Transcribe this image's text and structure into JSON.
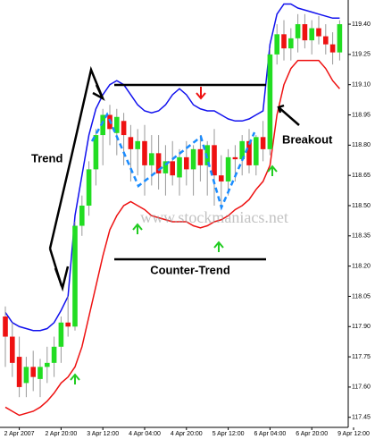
{
  "chart_data": {
    "type": "candlestick",
    "annotations": {
      "trend": "Trend",
      "counter_trend": "Counter-Trend",
      "breakout": "Breakout",
      "watermark": "www.stockmaniacs.net"
    },
    "categories": [
      null,
      null,
      "2 Apr 2007",
      null,
      null,
      null,
      null,
      null,
      "2 Apr 20:00",
      null,
      null,
      null,
      null,
      null,
      "3 Apr 12:00",
      null,
      null,
      null,
      null,
      null,
      "4 Apr 04:00",
      null,
      null,
      null,
      null,
      null,
      "4 Apr 20:00",
      null,
      null,
      null,
      null,
      null,
      "5 Apr 12:00",
      null,
      null,
      null,
      null,
      null,
      "6 Apr 04:00",
      null,
      null,
      null,
      null,
      null,
      "6 Apr 20:00",
      null,
      null,
      null,
      null,
      null,
      "9 Apr 12:00"
    ],
    "open": [
      117.95,
      117.85,
      117.75,
      117.62,
      117.7,
      117.64,
      117.7,
      117.72,
      117.8,
      117.92,
      117.9,
      118.4,
      118.5,
      118.68,
      118.85,
      118.95,
      118.86,
      118.92,
      118.84,
      118.78,
      118.82,
      118.7,
      118.76,
      118.66,
      118.72,
      118.64,
      118.74,
      118.68,
      118.78,
      118.7,
      118.8,
      118.65,
      118.62,
      118.74,
      118.73,
      118.82,
      118.7,
      118.84,
      118.78,
      119.25,
      119.35,
      119.28,
      119.33,
      119.4,
      119.32,
      119.38,
      119.34,
      119.3,
      119.26,
      null,
      null
    ],
    "high": [
      118.0,
      117.92,
      117.85,
      117.75,
      117.78,
      117.74,
      117.8,
      117.85,
      117.95,
      118.05,
      118.42,
      118.55,
      118.72,
      118.88,
      118.98,
      119.0,
      118.98,
      118.96,
      118.9,
      118.88,
      118.9,
      118.85,
      118.85,
      118.8,
      118.82,
      118.78,
      118.82,
      118.8,
      118.85,
      118.82,
      118.88,
      118.75,
      118.78,
      118.8,
      118.85,
      118.88,
      118.85,
      118.92,
      119.28,
      119.4,
      119.42,
      119.38,
      119.45,
      119.45,
      119.42,
      119.44,
      119.4,
      119.36,
      119.42,
      null,
      null
    ],
    "low": [
      117.7,
      117.65,
      117.55,
      117.55,
      117.58,
      117.55,
      117.62,
      117.65,
      117.72,
      117.85,
      117.88,
      118.35,
      118.45,
      118.6,
      118.7,
      118.8,
      118.75,
      118.7,
      118.62,
      118.65,
      118.55,
      118.6,
      118.58,
      118.55,
      118.6,
      118.55,
      118.6,
      118.55,
      118.62,
      118.55,
      118.5,
      118.5,
      118.55,
      118.62,
      118.65,
      118.66,
      118.65,
      118.72,
      118.75,
      119.2,
      119.22,
      119.22,
      119.26,
      119.28,
      119.25,
      119.3,
      119.25,
      119.2,
      119.22,
      null,
      null
    ],
    "close": [
      117.85,
      117.72,
      117.6,
      117.7,
      117.65,
      117.7,
      117.72,
      117.8,
      117.92,
      117.9,
      118.4,
      118.5,
      118.68,
      118.85,
      118.95,
      118.88,
      118.94,
      118.85,
      118.78,
      118.82,
      118.7,
      118.76,
      118.66,
      118.72,
      118.65,
      118.74,
      118.68,
      118.78,
      118.7,
      118.8,
      118.65,
      118.62,
      118.74,
      118.73,
      118.82,
      118.7,
      118.84,
      118.78,
      119.25,
      119.35,
      119.28,
      119.33,
      119.4,
      119.32,
      119.38,
      119.34,
      119.3,
      119.26,
      119.4,
      null,
      null
    ],
    "up_color": "#22dd22",
    "down_color": "#ee1111",
    "bands": [
      {
        "color": "#1111ee",
        "values": [
          117.97,
          117.92,
          117.9,
          117.89,
          117.88,
          117.88,
          117.89,
          117.92,
          117.98,
          118.05,
          118.45,
          118.65,
          118.85,
          118.98,
          119.05,
          119.1,
          119.12,
          119.1,
          119.05,
          119.0,
          118.97,
          118.96,
          118.97,
          119.0,
          119.05,
          119.08,
          119.05,
          119.0,
          118.98,
          118.97,
          118.97,
          118.95,
          118.93,
          118.92,
          118.92,
          118.93,
          118.95,
          118.97,
          119.3,
          119.45,
          119.5,
          119.5,
          119.48,
          119.47,
          119.46,
          119.45,
          119.44,
          119.43,
          119.43,
          null,
          null
        ]
      },
      {
        "color": "#ee1111",
        "values": [
          117.5,
          117.48,
          117.46,
          117.47,
          117.48,
          117.5,
          117.53,
          117.57,
          117.62,
          117.65,
          117.7,
          117.8,
          117.95,
          118.1,
          118.25,
          118.38,
          118.45,
          118.5,
          118.52,
          118.5,
          118.48,
          118.45,
          118.44,
          118.43,
          118.42,
          118.42,
          118.42,
          118.4,
          118.39,
          118.4,
          118.42,
          118.43,
          118.45,
          118.48,
          118.5,
          118.53,
          118.58,
          118.62,
          118.7,
          118.95,
          119.1,
          119.18,
          119.22,
          119.22,
          119.22,
          119.22,
          119.18,
          119.12,
          119.08,
          null,
          null
        ]
      }
    ],
    "ylim": [
      117.4,
      119.52
    ],
    "yticks": [
      {
        "value": 119.4,
        "label": "119.40"
      },
      119.25,
      {
        "value": 119.1,
        "label": "119.10"
      },
      118.95,
      {
        "value": 118.8,
        "label": "118.80"
      },
      118.65,
      {
        "value": 118.5,
        "label": "118.50"
      },
      118.35,
      {
        "value": 118.2,
        "label": "118.20"
      },
      118.05,
      {
        "value": 117.9,
        "label": "117.90"
      },
      117.75,
      {
        "value": 117.6,
        "label": "117.60"
      },
      117.45
    ]
  }
}
